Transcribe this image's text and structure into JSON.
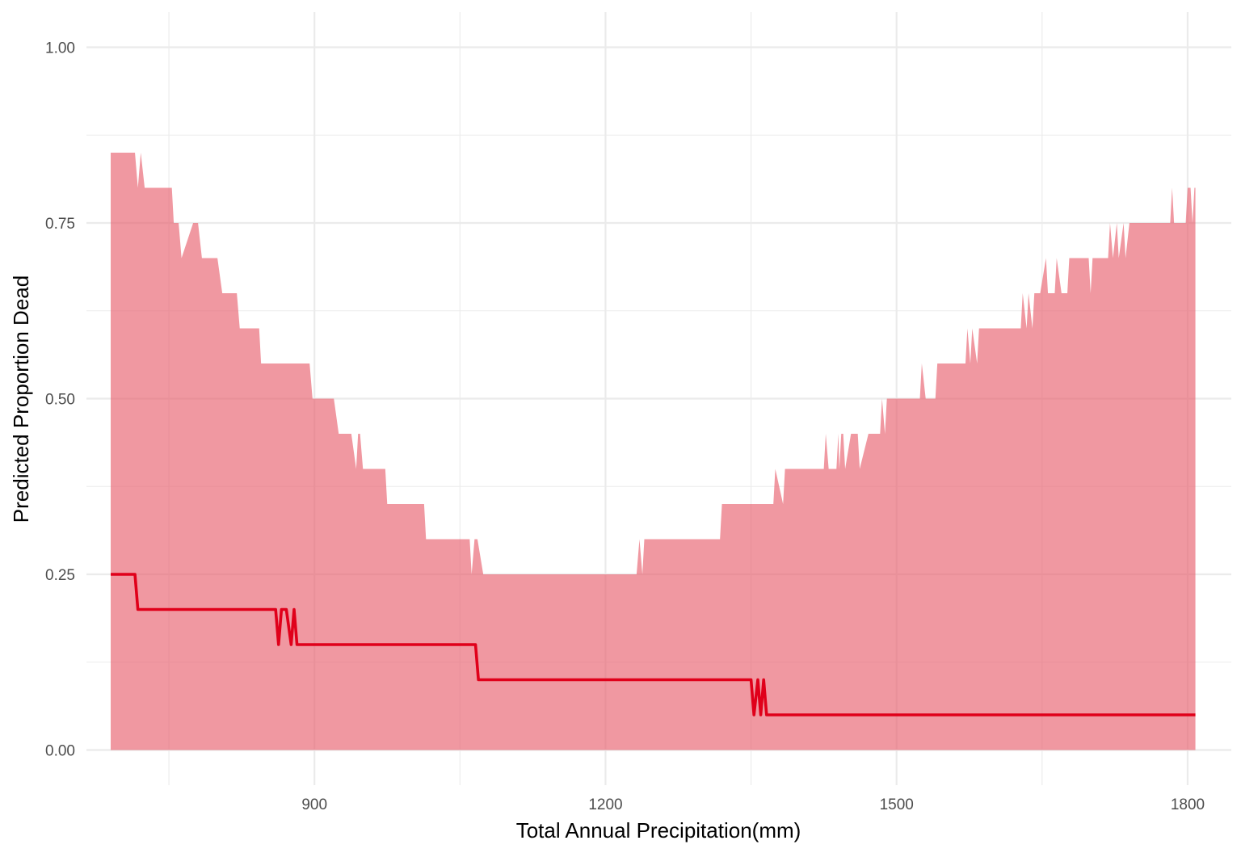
{
  "chart_data": {
    "type": "area",
    "title": "",
    "xlabel": "Total Annual Precipitation(mm)",
    "ylabel": "Predicted Proportion Dead",
    "xlim": [
      665,
      1845
    ],
    "ylim": [
      -0.05,
      1.05
    ],
    "x_ticks": [
      900,
      1200,
      1500,
      1800
    ],
    "x_tick_labels": [
      "900",
      "1200",
      "1500",
      "1800"
    ],
    "x_minor_ticks": [
      750,
      1050,
      1350,
      1650
    ],
    "y_ticks": [
      0,
      0.25,
      0.5,
      0.75,
      1.0
    ],
    "y_tick_labels": [
      "0.00",
      "0.25",
      "0.50",
      "0.75",
      "1.00"
    ],
    "y_minor_ticks": [
      0.125,
      0.375,
      0.625,
      0.875
    ],
    "grid": true,
    "legend": "none",
    "colors": {
      "ribbon": "#e8616f",
      "ribbon_opacity": 0.65,
      "line": "#e0001a",
      "grid": "#ebebeb"
    },
    "series": [
      {
        "kind": "ribbon",
        "x": [
          690,
          715,
          718,
          721,
          725,
          753,
          755,
          760,
          763,
          775,
          780,
          784,
          800,
          805,
          820,
          823,
          843,
          845,
          860,
          862,
          872,
          878,
          881,
          895,
          898,
          902,
          920,
          925,
          938,
          943,
          945,
          947,
          950,
          973,
          975,
          985,
          988,
          1013,
          1015,
          1040,
          1043,
          1060,
          1062,
          1065,
          1068,
          1074,
          1079,
          1230,
          1232,
          1235,
          1238,
          1240,
          1244,
          1318,
          1320,
          1335,
          1337,
          1350,
          1352,
          1365,
          1368,
          1373,
          1375,
          1383,
          1385,
          1388,
          1390,
          1395,
          1398,
          1425,
          1427,
          1430,
          1432,
          1438,
          1440,
          1441,
          1443,
          1445,
          1447,
          1453,
          1455,
          1460,
          1462,
          1471,
          1473,
          1477,
          1479,
          1483,
          1485,
          1488,
          1490,
          1524,
          1526,
          1530,
          1532,
          1540,
          1542,
          1560,
          1562,
          1571,
          1573,
          1576,
          1578,
          1583,
          1585,
          1588,
          1590,
          1628,
          1630,
          1634,
          1636,
          1640,
          1642,
          1646,
          1648,
          1654,
          1656,
          1663,
          1665,
          1670,
          1672,
          1676,
          1678,
          1688,
          1690,
          1698,
          1700,
          1702,
          1704,
          1710,
          1712,
          1716,
          1718,
          1720,
          1723,
          1727,
          1729,
          1734,
          1736,
          1740,
          1742,
          1744,
          1746,
          1782,
          1784,
          1786,
          1790,
          1798,
          1800,
          1803,
          1805,
          1807,
          1808
        ],
        "upper": [
          0.85,
          0.85,
          0.8,
          0.85,
          0.8,
          0.8,
          0.75,
          0.75,
          0.7,
          0.75,
          0.75,
          0.7,
          0.7,
          0.65,
          0.65,
          0.6,
          0.6,
          0.55,
          0.55,
          0.55,
          0.55,
          0.55,
          0.55,
          0.55,
          0.5,
          0.5,
          0.5,
          0.45,
          0.45,
          0.4,
          0.45,
          0.45,
          0.4,
          0.4,
          0.35,
          0.35,
          0.35,
          0.35,
          0.3,
          0.3,
          0.3,
          0.3,
          0.25,
          0.3,
          0.3,
          0.25,
          0.25,
          0.25,
          0.25,
          0.3,
          0.25,
          0.3,
          0.3,
          0.3,
          0.35,
          0.35,
          0.35,
          0.35,
          0.35,
          0.35,
          0.35,
          0.35,
          0.4,
          0.35,
          0.4,
          0.4,
          0.4,
          0.4,
          0.4,
          0.4,
          0.45,
          0.4,
          0.4,
          0.4,
          0.45,
          0.4,
          0.45,
          0.45,
          0.4,
          0.45,
          0.45,
          0.45,
          0.4,
          0.45,
          0.45,
          0.45,
          0.45,
          0.45,
          0.5,
          0.45,
          0.5,
          0.5,
          0.55,
          0.5,
          0.5,
          0.5,
          0.55,
          0.55,
          0.55,
          0.55,
          0.6,
          0.55,
          0.6,
          0.55,
          0.6,
          0.6,
          0.6,
          0.6,
          0.65,
          0.6,
          0.65,
          0.6,
          0.65,
          0.65,
          0.65,
          0.7,
          0.65,
          0.65,
          0.7,
          0.65,
          0.65,
          0.65,
          0.7,
          0.7,
          0.7,
          0.7,
          0.65,
          0.7,
          0.7,
          0.7,
          0.7,
          0.7,
          0.7,
          0.75,
          0.7,
          0.75,
          0.7,
          0.75,
          0.7,
          0.75,
          0.75,
          0.75,
          0.75,
          0.75,
          0.8,
          0.75,
          0.75,
          0.75,
          0.8,
          0.8,
          0.75,
          0.8,
          0.8
        ],
        "lower": 0
      },
      {
        "kind": "line",
        "x": [
          690,
          715,
          718,
          860,
          863,
          866,
          871,
          876,
          879,
          882,
          1066,
          1069,
          1350,
          1353,
          1357,
          1360,
          1363,
          1366,
          1369,
          1808
        ],
        "values": [
          0.25,
          0.25,
          0.2,
          0.2,
          0.15,
          0.2,
          0.2,
          0.15,
          0.2,
          0.15,
          0.15,
          0.1,
          0.1,
          0.05,
          0.1,
          0.05,
          0.1,
          0.05,
          0.05,
          0.05
        ]
      }
    ]
  }
}
